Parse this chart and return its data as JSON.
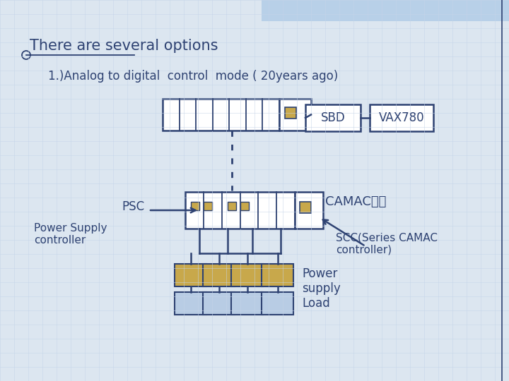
{
  "bg_color": "#dce6f0",
  "bg_top_color": "#c5d8ef",
  "title_color": "#2e4272",
  "box_color": "#2e4272",
  "gold_color": "#c8a84b",
  "blue_light_color": "#b8cce4",
  "text_color": "#2e4272",
  "title1": "There are several options",
  "title2": "1.)Analog to digital  control  mode ( 20years ago)",
  "label_psc": "PSC",
  "label_power_supply_controller": "Power Supply\ncontroller",
  "label_sbd": "SBD",
  "label_vax": "VAX780",
  "label_camac": "CAMAC系统",
  "label_scc": "SCC(Series CAMAC\ncontroller)",
  "label_power": "Power\nsupply\nLoad",
  "grid_color": "#b8cce4",
  "corner_line_color": "#2e4272",
  "right_border_color": "#2e4272"
}
